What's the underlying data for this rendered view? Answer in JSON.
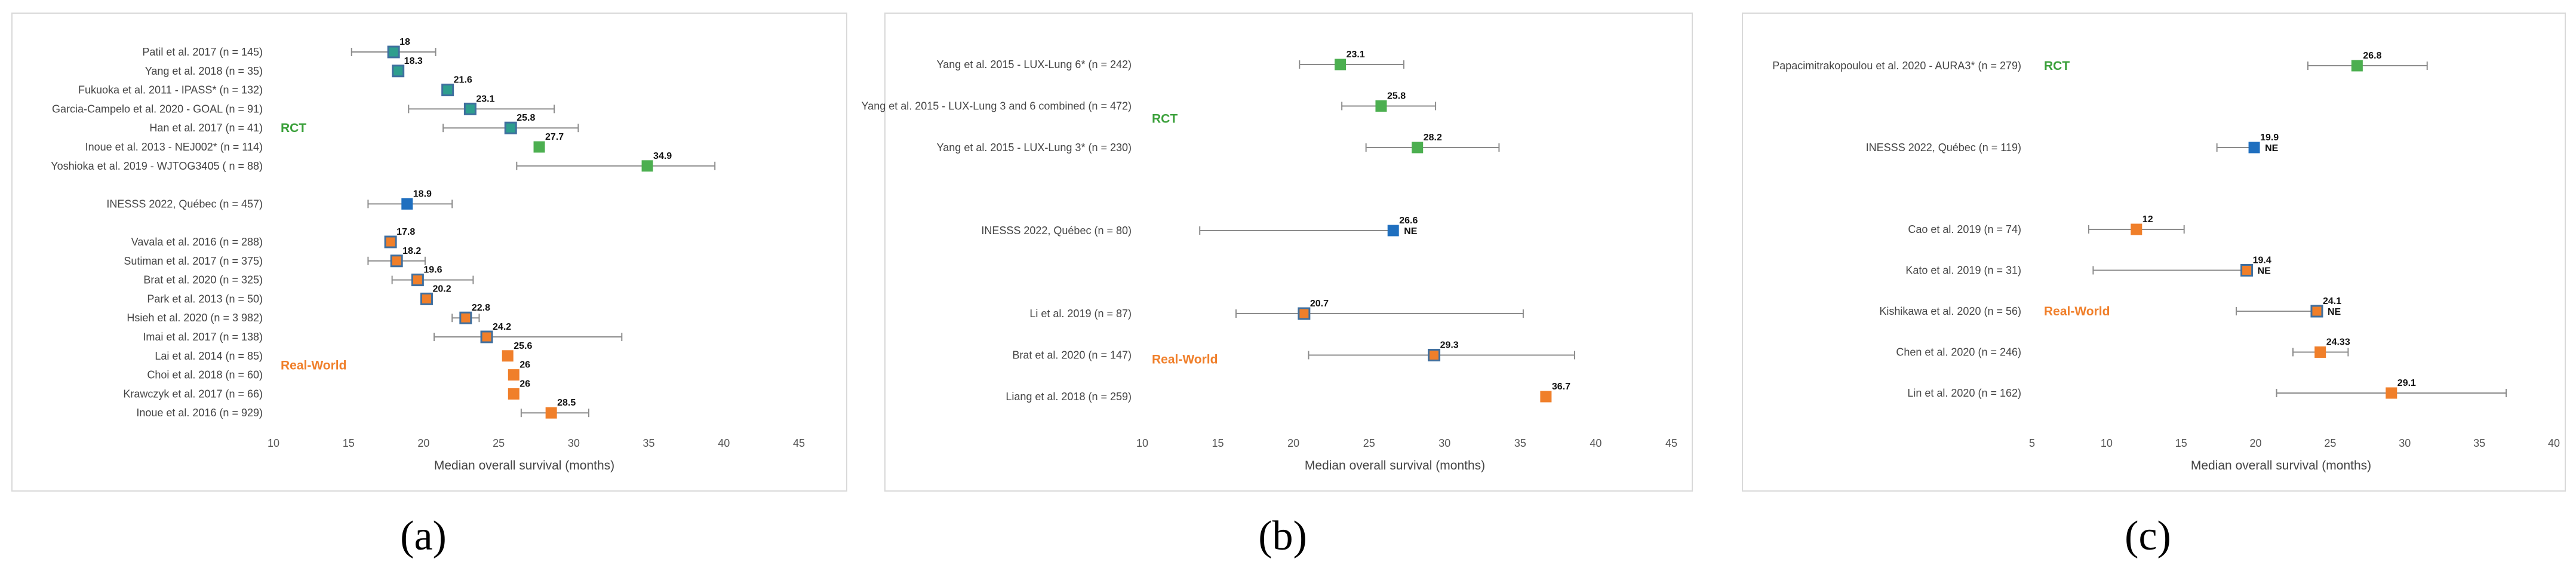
{
  "colors": {
    "rct": "#3aa03a",
    "rct_fill": "#4caf50",
    "ref": "#1f6fbf",
    "rw": "#f07f2a",
    "ci": "#8c8c8c",
    "mixed_edge": "#3f6f9f"
  },
  "chart_data": [
    {
      "type": "forest",
      "panel_label": "(a)",
      "xlabel": "Median overall survival (months)",
      "xlim": [
        10,
        45
      ],
      "xticks": [
        10,
        15,
        20,
        25,
        30,
        35,
        40,
        45
      ],
      "groups": [
        {
          "label": "RCT",
          "row": 4,
          "color": "rct"
        },
        {
          "label": "Real-World",
          "row": 16.5,
          "color": "rw"
        }
      ],
      "rows": [
        {
          "label": "Patil et al. 2017 (n = 145)",
          "value": 18,
          "value_label": "18",
          "ci": [
            15.2,
            20.8
          ],
          "kind": "mixed_rct",
          "row": 0
        },
        {
          "label": "Yang et al. 2018 (n = 35)",
          "value": 18.3,
          "value_label": "18.3",
          "ci": null,
          "kind": "mixed_rct",
          "row": 1
        },
        {
          "label": "Fukuoka et al. 2011 - IPASS* (n = 132)",
          "value": 21.6,
          "value_label": "21.6",
          "ci": null,
          "kind": "mixed_rct",
          "row": 2
        },
        {
          "label": "Garcia-Campelo et al. 2020 - GOAL (n = 91)",
          "value": 23.1,
          "value_label": "23.1",
          "ci": [
            19.0,
            28.7
          ],
          "kind": "mixed_rct",
          "row": 3
        },
        {
          "label": "Han et al. 2017 (n = 41)",
          "value": 25.8,
          "value_label": "25.8",
          "ci": [
            21.3,
            30.3
          ],
          "kind": "mixed_rct",
          "row": 4
        },
        {
          "label": "Inoue et al. 2013 - NEJ002* (n = 114)",
          "value": 27.7,
          "value_label": "27.7",
          "ci": null,
          "kind": "rct",
          "row": 5
        },
        {
          "label": "Yoshioka et al. 2019 - WJTOG3405 ( n = 88)",
          "value": 34.9,
          "value_label": "34.9",
          "ci": [
            26.2,
            39.4
          ],
          "kind": "rct",
          "row": 6
        },
        {
          "label": "INESSS 2022, Québec (n = 457)",
          "value": 18.9,
          "value_label": "18.9",
          "ci": [
            16.3,
            21.9
          ],
          "kind": "ref",
          "row": 8
        },
        {
          "label": "Vavala et al. 2016 (n = 288)",
          "value": 17.8,
          "value_label": "17.8",
          "ci": null,
          "kind": "mixed_rw",
          "row": 10
        },
        {
          "label": "Sutiman et al. 2017 (n = 375)",
          "value": 18.2,
          "value_label": "18.2",
          "ci": [
            16.3,
            20.1
          ],
          "kind": "mixed_rw",
          "row": 11
        },
        {
          "label": "Brat et al. 2020 (n = 325)",
          "value": 19.6,
          "value_label": "19.6",
          "ci": [
            17.9,
            23.3
          ],
          "kind": "mixed_rw",
          "row": 12
        },
        {
          "label": "Park et al. 2013 (n = 50)",
          "value": 20.2,
          "value_label": "20.2",
          "ci": null,
          "kind": "mixed_rw",
          "row": 13
        },
        {
          "label": "Hsieh et al. 2020 (n = 3 982)",
          "value": 22.8,
          "value_label": "22.8",
          "ci": [
            21.9,
            23.7
          ],
          "kind": "mixed_rw",
          "row": 14
        },
        {
          "label": "Imai et al. 2017 (n = 138)",
          "value": 24.2,
          "value_label": "24.2",
          "ci": [
            20.7,
            33.2
          ],
          "kind": "mixed_rw",
          "row": 15
        },
        {
          "label": "Lai et al. 2014 (n = 85)",
          "value": 25.6,
          "value_label": "25.6",
          "ci": null,
          "kind": "rw",
          "row": 16
        },
        {
          "label": "Choi et al. 2018 (n = 60)",
          "value": 26,
          "value_label": "26",
          "ci": null,
          "kind": "rw",
          "row": 17
        },
        {
          "label": "Krawczyk et al. 2017 (n = 66)",
          "value": 26,
          "value_label": "26",
          "ci": null,
          "kind": "rw",
          "row": 18
        },
        {
          "label": "Inoue et al. 2016 (n = 929)",
          "value": 28.5,
          "value_label": "28.5",
          "ci": [
            26.5,
            31.0
          ],
          "kind": "rw",
          "row": 19
        }
      ]
    },
    {
      "type": "forest",
      "panel_label": "(b)",
      "xlabel": "Median overall survival (months)",
      "xlim": [
        10,
        45
      ],
      "xticks": [
        10,
        15,
        20,
        25,
        30,
        35,
        40,
        45
      ],
      "groups": [
        {
          "label": "RCT",
          "row": 1.3,
          "color": "rct"
        },
        {
          "label": "Real-World",
          "row": 7.1,
          "color": "rw"
        }
      ],
      "rows": [
        {
          "label": "Yang et al. 2015 - LUX-Lung 6* (n = 242)",
          "value": 23.1,
          "value_label": "23.1",
          "ci": [
            20.4,
            27.3
          ],
          "kind": "rct",
          "row": 0
        },
        {
          "label": "Yang et al. 2015 - LUX-Lung 3 and 6 combined (n = 472)",
          "value": 25.8,
          "value_label": "25.8",
          "ci": [
            23.2,
            29.4
          ],
          "kind": "rct",
          "row": 1
        },
        {
          "label": "Yang et al. 2015 - LUX-Lung 3* (n = 230)",
          "value": 28.2,
          "value_label": "28.2",
          "ci": [
            24.8,
            33.6
          ],
          "kind": "rct",
          "row": 2
        },
        {
          "label": "INESSS 2022, Québec (n = 80)",
          "value": 26.6,
          "value_label": "26.6",
          "ci": [
            13.8,
            26.6
          ],
          "kind": "ref",
          "row": 4,
          "note": "NE"
        },
        {
          "label": "Li et al. 2019 (n = 87)",
          "value": 20.7,
          "value_label": "20.7",
          "ci": [
            16.2,
            35.2
          ],
          "kind": "mixed_rw",
          "row": 6
        },
        {
          "label": "Brat et al. 2020 (n = 147)",
          "value": 29.3,
          "value_label": "29.3",
          "ci": [
            21.0,
            38.6
          ],
          "kind": "mixed_rw",
          "row": 7
        },
        {
          "label": "Liang et al. 2018 (n = 259)",
          "value": 36.7,
          "value_label": "36.7",
          "ci": null,
          "kind": "rw",
          "row": 8
        }
      ]
    },
    {
      "type": "forest",
      "panel_label": "(c)",
      "xlabel": "Median overall survival (months)",
      "xlim": [
        5,
        40
      ],
      "xticks": [
        5,
        10,
        15,
        20,
        25,
        30,
        35,
        40
      ],
      "groups": [
        {
          "label": "RCT",
          "row": 0,
          "color": "rct"
        },
        {
          "label": "Real-World",
          "row": 6,
          "color": "rw"
        }
      ],
      "rows": [
        {
          "label": "Papacimitrakopoulou et al. 2020 - AURA3* (n = 279)",
          "value": 26.8,
          "value_label": "26.8",
          "ci": [
            23.5,
            31.5
          ],
          "kind": "rct",
          "row": 0
        },
        {
          "label": "INESSS 2022, Québec (n = 119)",
          "value": 19.9,
          "value_label": "19.9",
          "ci": [
            17.4,
            19.9
          ],
          "kind": "ref",
          "row": 2,
          "note": "NE"
        },
        {
          "label": "Cao et al. 2019 (n = 74)",
          "value": 12,
          "value_label": "12",
          "ci": [
            8.8,
            15.2
          ],
          "kind": "rw",
          "row": 4
        },
        {
          "label": "Kato et al. 2019 (n = 31)",
          "value": 19.4,
          "value_label": "19.4",
          "ci": [
            9.1,
            19.4
          ],
          "kind": "mixed_rw",
          "row": 5,
          "note": "NE"
        },
        {
          "label": "Kishikawa et al. 2020 (n = 56)",
          "value": 24.1,
          "value_label": "24.1",
          "ci": [
            18.7,
            24.1
          ],
          "kind": "mixed_rw",
          "row": 6,
          "note": "NE"
        },
        {
          "label": "Chen et al. 2020 (n = 246)",
          "value": 24.33,
          "value_label": "24.33",
          "ci": [
            22.5,
            26.2
          ],
          "kind": "rw",
          "row": 7
        },
        {
          "label": "Lin et al. 2020 (n = 162)",
          "value": 29.1,
          "value_label": "29.1",
          "ci": [
            21.4,
            36.8
          ],
          "kind": "rw",
          "row": 8
        }
      ]
    }
  ]
}
